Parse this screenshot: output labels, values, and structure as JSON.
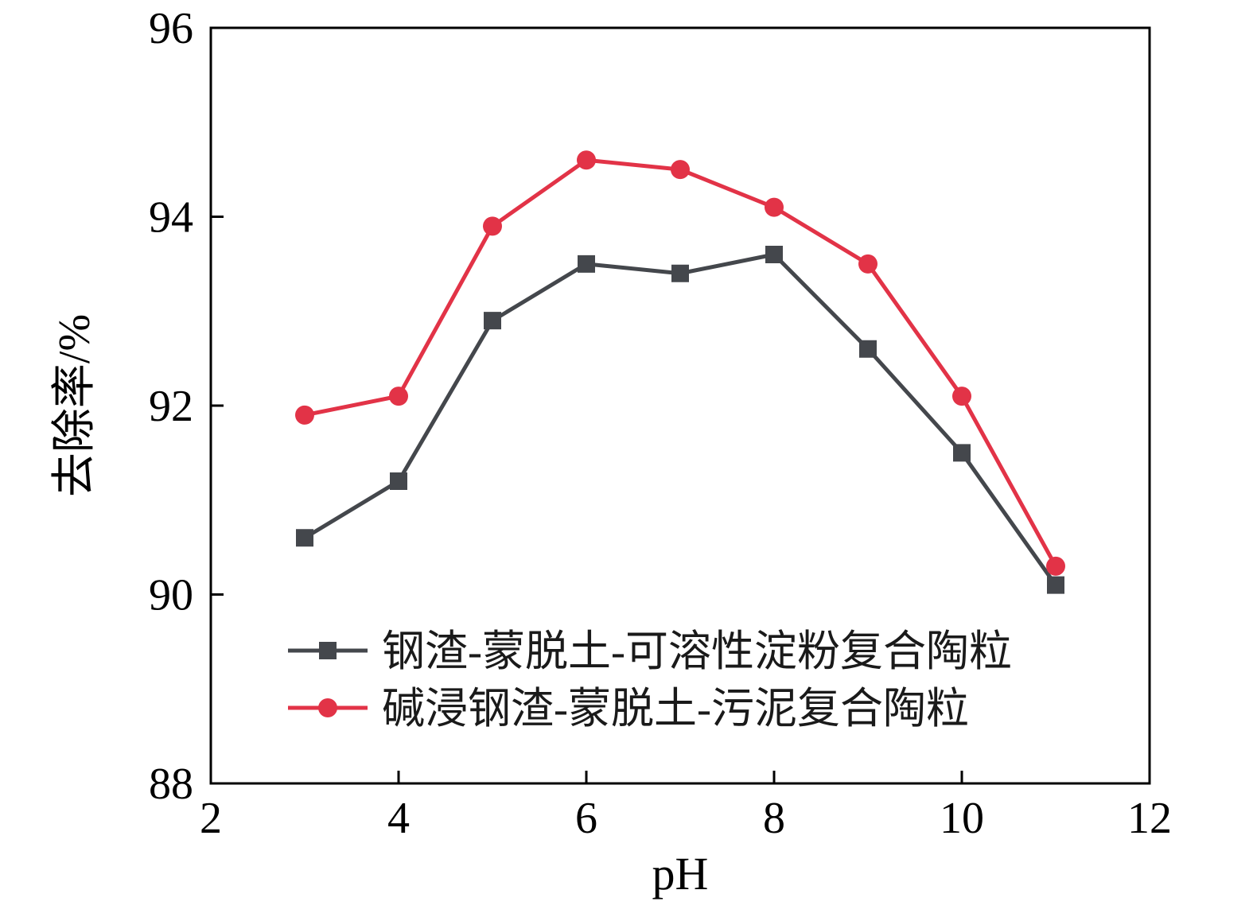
{
  "chart_data": {
    "type": "line",
    "title": "",
    "xlabel": "pH",
    "ylabel": "去除率/%",
    "xlim": [
      2,
      12
    ],
    "ylim": [
      88,
      96
    ],
    "xticks": [
      2,
      4,
      6,
      8,
      10,
      12
    ],
    "yticks": [
      88,
      90,
      92,
      94,
      96
    ],
    "x": [
      3,
      4,
      5,
      6,
      7,
      8,
      9,
      10,
      11
    ],
    "grid": false,
    "legend_position": "lower-left-inside",
    "frame": "box",
    "series": [
      {
        "name": "钢渣-蒙脱土-可溶性淀粉复合陶粒",
        "color": "#44474c",
        "marker": "square",
        "values": [
          90.6,
          91.2,
          92.9,
          93.5,
          93.4,
          93.6,
          92.6,
          91.5,
          90.1
        ]
      },
      {
        "name": "碱浸钢渣-蒙脱土-污泥复合陶粒",
        "color": "#e23347",
        "marker": "circle",
        "values": [
          91.9,
          92.1,
          93.9,
          94.6,
          94.5,
          94.1,
          93.5,
          92.1,
          90.3
        ]
      }
    ],
    "colors": {
      "axis": "#000000",
      "tick_text": "#000000",
      "legend_text": "#1a1a1a"
    }
  }
}
